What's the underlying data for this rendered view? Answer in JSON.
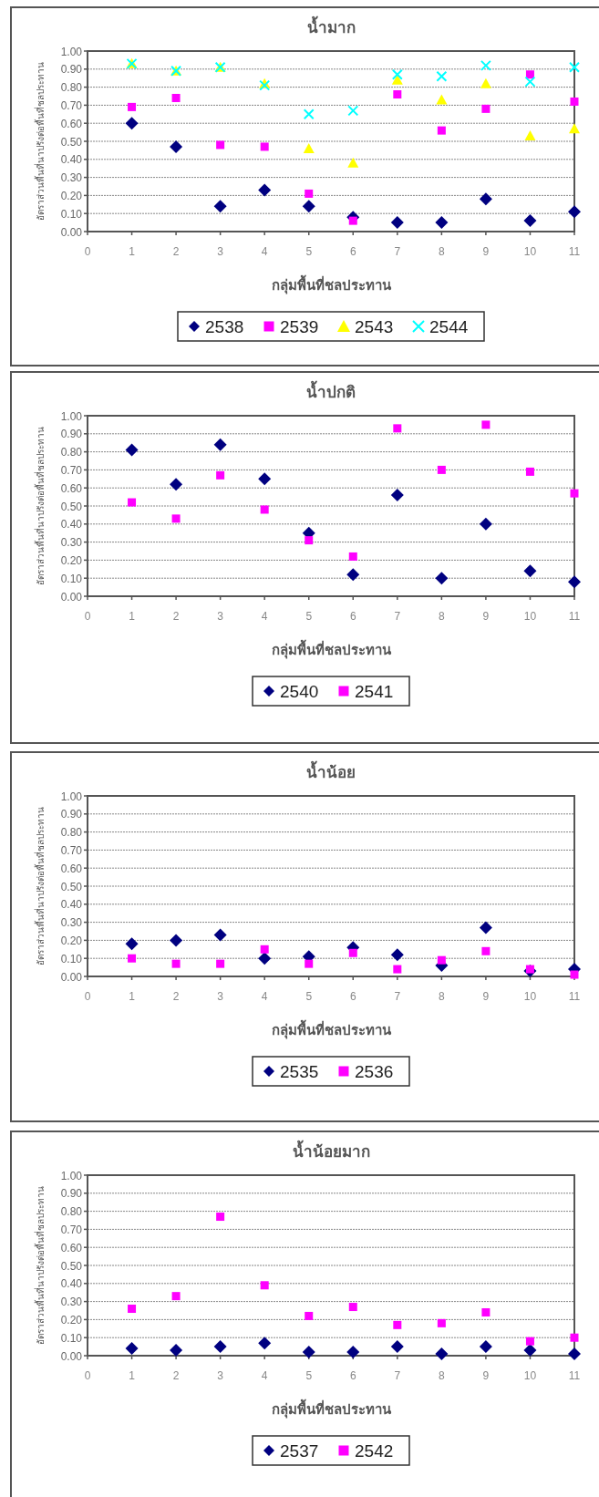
{
  "chart_data": [
    {
      "type": "scatter",
      "title": "น้ำมาก",
      "xlabel": "กลุ่มพื้นที่ชลประทาน",
      "ylabel": "อัตราส่วนพื้นที่นาปรังต่อพื้นที่ชลประทาน",
      "x": [
        1,
        2,
        3,
        4,
        5,
        6,
        7,
        8,
        9,
        10,
        11
      ],
      "xlim": [
        0,
        11
      ],
      "xticks": [
        0,
        1,
        2,
        3,
        4,
        5,
        6,
        7,
        8,
        9,
        10,
        11
      ],
      "ylim": [
        0,
        1
      ],
      "yticks": [
        {
          "value": 0,
          "label": "0.00"
        },
        {
          "value": 0.1,
          "label": "0.10"
        },
        {
          "value": 0.2,
          "label": "0.20"
        },
        {
          "value": 0.3,
          "label": "0.30"
        },
        {
          "value": 0.4,
          "label": "0.40"
        },
        {
          "value": 0.5,
          "label": "0.50"
        },
        {
          "value": 0.6,
          "label": "0.60"
        },
        {
          "value": 0.7,
          "label": "0.70"
        },
        {
          "value": 0.8,
          "label": "0.80"
        },
        {
          "value": 0.9,
          "label": "0.90"
        },
        {
          "value": 1,
          "label": "1.00"
        }
      ],
      "grid": "y",
      "legend": "bottom",
      "series": [
        {
          "name": "2538",
          "color": "#000080",
          "marker": "diamond",
          "values": [
            0.6,
            0.47,
            0.14,
            0.23,
            0.14,
            0.08,
            0.05,
            0.05,
            0.18,
            0.06,
            0.11
          ]
        },
        {
          "name": "2539",
          "color": "#ff00ff",
          "marker": "square",
          "values": [
            0.69,
            0.74,
            0.48,
            0.47,
            0.21,
            0.06,
            0.76,
            0.56,
            0.68,
            0.87,
            0.72
          ]
        },
        {
          "name": "2543",
          "color": "#ffff00",
          "marker": "triangle",
          "values": [
            0.93,
            0.89,
            0.91,
            0.82,
            0.46,
            0.38,
            0.84,
            0.73,
            0.82,
            0.53,
            0.57
          ]
        },
        {
          "name": "2544",
          "color": "#00ffff",
          "marker": "cross",
          "values": [
            0.93,
            0.89,
            0.91,
            0.81,
            0.65,
            0.67,
            0.87,
            0.86,
            0.92,
            0.83,
            0.91
          ]
        }
      ]
    },
    {
      "type": "scatter",
      "title": "น้ำปกติ",
      "xlabel": "กลุ่มพื้นที่ชลประทาน",
      "ylabel": "อัตราส่วนพื้นที่นาปรังต่อพื้นที่ชลประทาน",
      "x": [
        1,
        2,
        3,
        4,
        5,
        6,
        7,
        8,
        9,
        10,
        11
      ],
      "xlim": [
        0,
        11
      ],
      "xticks": [
        0,
        1,
        2,
        3,
        4,
        5,
        6,
        7,
        8,
        9,
        10,
        11
      ],
      "ylim": [
        0,
        1
      ],
      "yticks": [
        {
          "value": 0,
          "label": "0.00"
        },
        {
          "value": 0.1,
          "label": "0.10"
        },
        {
          "value": 0.2,
          "label": "0.20"
        },
        {
          "value": 0.3,
          "label": "0.30"
        },
        {
          "value": 0.4,
          "label": "0.40"
        },
        {
          "value": 0.5,
          "label": "0.50"
        },
        {
          "value": 0.6,
          "label": "0.60"
        },
        {
          "value": 0.7,
          "label": "0.70"
        },
        {
          "value": 0.8,
          "label": "0.80"
        },
        {
          "value": 0.9,
          "label": "0.90"
        },
        {
          "value": 1,
          "label": "1.00"
        }
      ],
      "grid": "y",
      "legend": "bottom",
      "series": [
        {
          "name": "2540",
          "color": "#000080",
          "marker": "diamond",
          "values": [
            0.81,
            0.62,
            0.84,
            0.65,
            0.35,
            0.12,
            0.56,
            0.1,
            0.4,
            0.14,
            0.08
          ]
        },
        {
          "name": "2541",
          "color": "#ff00ff",
          "marker": "square",
          "values": [
            0.52,
            0.43,
            0.67,
            0.48,
            0.31,
            0.22,
            0.93,
            0.7,
            0.95,
            0.69,
            0.57
          ]
        }
      ]
    },
    {
      "type": "scatter",
      "title": "น้ำน้อย",
      "xlabel": "กลุ่มพื้นที่ชลประทาน",
      "ylabel": "อัตราส่วนพื้นที่นาปรังต่อพื้นที่ชลประทาน",
      "x": [
        1,
        2,
        3,
        4,
        5,
        6,
        7,
        8,
        9,
        10,
        11
      ],
      "xlim": [
        0,
        11
      ],
      "xticks": [
        0,
        1,
        2,
        3,
        4,
        5,
        6,
        7,
        8,
        9,
        10,
        11
      ],
      "ylim": [
        0,
        1
      ],
      "yticks": [
        {
          "value": 0,
          "label": "0.00"
        },
        {
          "value": 0.1,
          "label": "0.10"
        },
        {
          "value": 0.2,
          "label": "0.20"
        },
        {
          "value": 0.3,
          "label": "0.30"
        },
        {
          "value": 0.4,
          "label": "0.40"
        },
        {
          "value": 0.5,
          "label": "0.50"
        },
        {
          "value": 0.6,
          "label": "0.60"
        },
        {
          "value": 0.7,
          "label": "0.70"
        },
        {
          "value": 0.8,
          "label": "0.80"
        },
        {
          "value": 0.9,
          "label": "0.90"
        },
        {
          "value": 1,
          "label": "1.00"
        }
      ],
      "grid": "y",
      "legend": "bottom",
      "series": [
        {
          "name": "2535",
          "color": "#000080",
          "marker": "diamond",
          "values": [
            0.18,
            0.2,
            0.23,
            0.1,
            0.11,
            0.16,
            0.12,
            0.06,
            0.27,
            0.03,
            0.04
          ]
        },
        {
          "name": "2536",
          "color": "#ff00ff",
          "marker": "square",
          "values": [
            0.1,
            0.07,
            0.07,
            0.15,
            0.07,
            0.13,
            0.04,
            0.09,
            0.14,
            0.04,
            0.01
          ]
        }
      ]
    },
    {
      "type": "scatter",
      "title": "น้ำน้อยมาก",
      "xlabel": "กลุ่มพื้นที่ชลประทาน",
      "ylabel": "อัตราส่วนพื้นที่นาปรังต่อพื้นที่ชลประทาน",
      "x": [
        1,
        2,
        3,
        4,
        5,
        6,
        7,
        8,
        9,
        10,
        11
      ],
      "xlim": [
        0,
        11
      ],
      "xticks": [
        0,
        1,
        2,
        3,
        4,
        5,
        6,
        7,
        8,
        9,
        10,
        11
      ],
      "ylim": [
        0,
        1
      ],
      "yticks": [
        {
          "value": 0,
          "label": "0.00"
        },
        {
          "value": 0.1,
          "label": "0.10"
        },
        {
          "value": 0.2,
          "label": "0.20"
        },
        {
          "value": 0.3,
          "label": "0.30"
        },
        {
          "value": 0.4,
          "label": "0.40"
        },
        {
          "value": 0.5,
          "label": "0.50"
        },
        {
          "value": 0.6,
          "label": "0.60"
        },
        {
          "value": 0.7,
          "label": "0.70"
        },
        {
          "value": 0.8,
          "label": "0.80"
        },
        {
          "value": 0.9,
          "label": "0.90"
        },
        {
          "value": 1,
          "label": "1.00"
        }
      ],
      "grid": "y",
      "legend": "bottom",
      "series": [
        {
          "name": "2537",
          "color": "#000080",
          "marker": "diamond",
          "values": [
            0.04,
            0.03,
            0.05,
            0.07,
            0.02,
            0.02,
            0.05,
            0.01,
            0.05,
            0.03,
            0.01
          ]
        },
        {
          "name": "2542",
          "color": "#ff00ff",
          "marker": "square",
          "values": [
            0.26,
            0.33,
            0.77,
            0.39,
            0.22,
            0.27,
            0.17,
            0.18,
            0.24,
            0.08,
            0.1
          ]
        }
      ]
    }
  ]
}
